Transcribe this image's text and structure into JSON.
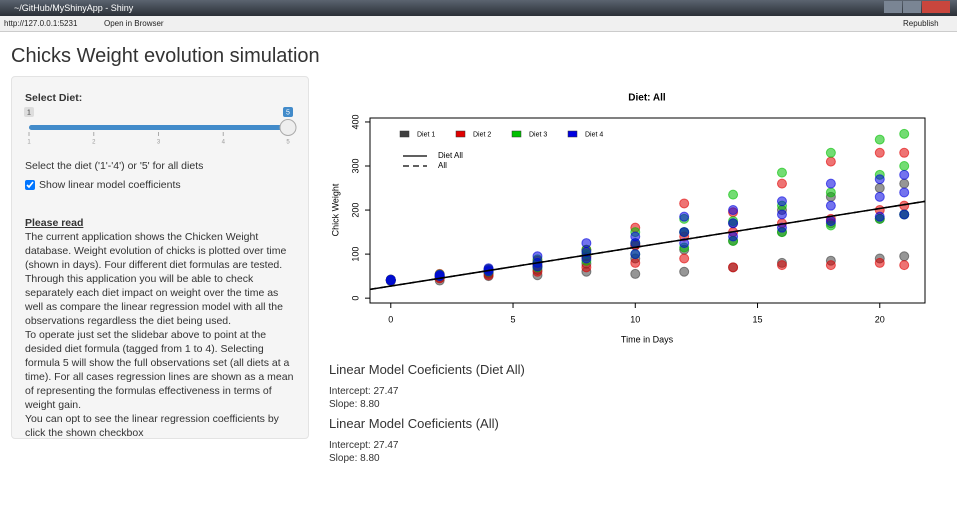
{
  "window": {
    "title": "~/GitHub/MyShinyApp - Shiny"
  },
  "toolbar": {
    "url": "http://127.0.0.1:5231",
    "open": "Open in Browser",
    "publish": "Republish"
  },
  "app": {
    "title": "Chicks Weight evolution simulation"
  },
  "sidebar": {
    "select_label": "Select Diet:",
    "slider": {
      "min": 1,
      "max": 5,
      "value": 5,
      "ticks": [
        1,
        2,
        3,
        4,
        5
      ]
    },
    "help": "Select the diet ('1'-'4') or '5' for all diets",
    "checkbox": {
      "label": "Show linear model coefficients",
      "checked": true
    },
    "read_title": "Please read",
    "paragraphs": [
      "The current application shows the Chicken Weight database. Weight evolution of chicks is plotted over time (shown in days). Four different diet formulas are tested. Through this application you will be able to check separately each diet impact on weight over the time as well as compare the linear regression model with all the observations regardless the diet being used.",
      "To operate just set the slidebar above to point at the desided diet formula (tagged from 1 to 4). Selecting formula 5 will show the full observations set (all diets at a time). For all cases regression lines are shown as a mean of representing the formulas effectiveness in terms of weight gain.",
      "You can opt to see the linear regression coefficients by click the shown checkbox"
    ]
  },
  "chart_data": {
    "type": "scatter",
    "title": "Diet: All",
    "xlabel": "Time in Days",
    "ylabel": "Chick Weight",
    "xlim": [
      -0.85,
      21.85
    ],
    "ylim": [
      -11,
      409
    ],
    "xticks": [
      0,
      5,
      10,
      15,
      20
    ],
    "yticks": [
      0,
      100,
      200,
      300,
      400
    ],
    "grid": false,
    "legend": "top-left",
    "x": [
      0,
      0,
      0,
      2,
      2,
      2,
      4,
      4,
      4,
      6,
      6,
      6,
      8,
      8,
      8,
      10,
      10,
      10,
      12,
      12,
      12,
      14,
      14,
      14,
      16,
      16,
      16,
      18,
      18,
      18,
      20,
      20,
      20,
      21,
      21,
      21
    ],
    "series": [
      {
        "name": "Diet 1",
        "color": "#404040",
        "values": [
          39,
          42,
          41,
          40,
          46,
          50,
          50,
          55,
          58,
          52,
          64,
          72,
          60,
          78,
          95,
          55,
          90,
          120,
          60,
          110,
          150,
          70,
          130,
          170,
          80,
          150,
          200,
          85,
          170,
          230,
          90,
          180,
          250,
          95,
          190,
          260
        ]
      },
      {
        "name": "Diet 2",
        "color": "#e00000",
        "values": [
          40,
          41,
          42,
          45,
          50,
          55,
          52,
          60,
          66,
          60,
          75,
          85,
          70,
          95,
          110,
          80,
          120,
          160,
          90,
          140,
          215,
          70,
          150,
          195,
          75,
          170,
          260,
          75,
          180,
          310,
          80,
          200,
          330,
          75,
          210,
          330
        ]
      },
      {
        "name": "Diet 3",
        "color": "#00c000",
        "values": [
          41,
          40,
          42,
          50,
          52,
          54,
          60,
          62,
          66,
          70,
          80,
          88,
          85,
          100,
          110,
          100,
          125,
          150,
          115,
          150,
          180,
          130,
          175,
          235,
          150,
          210,
          285,
          165,
          240,
          330,
          180,
          280,
          360,
          190,
          300,
          373
        ]
      },
      {
        "name": "Diet 4",
        "color": "#0000e0",
        "values": [
          41,
          42,
          40,
          50,
          51,
          53,
          61,
          64,
          68,
          72,
          80,
          95,
          90,
          105,
          125,
          100,
          125,
          140,
          125,
          150,
          185,
          140,
          170,
          200,
          160,
          190,
          220,
          175,
          210,
          260,
          185,
          230,
          270,
          190,
          240,
          280
        ]
      }
    ],
    "lines": [
      {
        "name": "Diet All",
        "intercept": 27.47,
        "slope": 8.8,
        "dash": "solid"
      },
      {
        "name": "All",
        "intercept": 27.47,
        "slope": 8.8,
        "dash": "dashed"
      }
    ]
  },
  "results": [
    {
      "title": "Linear Model Coeficients (Diet All)",
      "intercept": "Intercept: 27.47",
      "slope": "Slope: 8.80"
    },
    {
      "title": "Linear Model Coeficients (All)",
      "intercept": "Intercept: 27.47",
      "slope": "Slope: 8.80"
    }
  ]
}
